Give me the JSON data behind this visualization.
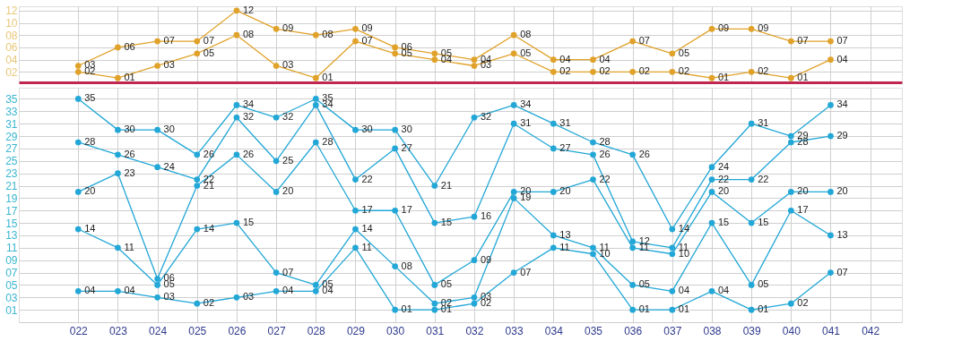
{
  "chart_data": [
    {
      "type": "line",
      "categories": [
        "022",
        "023",
        "024",
        "025",
        "026",
        "027",
        "028",
        "029",
        "030",
        "031",
        "032",
        "033",
        "034",
        "035",
        "036",
        "037",
        "038",
        "039",
        "040",
        "041",
        "042"
      ],
      "series": [
        {
          "color": "#e0a22a",
          "values": [
            3,
            6,
            7,
            7,
            12,
            9,
            8,
            9,
            6,
            5,
            4,
            8,
            4,
            4,
            7,
            5,
            9,
            9,
            7,
            7,
            null
          ],
          "value_labels": [
            "03",
            "06",
            "07",
            "07",
            "12",
            "09",
            "08",
            "09",
            "06",
            "05",
            "04",
            "08",
            "04",
            "04",
            "07",
            "05",
            "09",
            "09",
            "07",
            "07",
            null
          ]
        },
        {
          "color": "#e0a22a",
          "values": [
            2,
            1,
            3,
            5,
            8,
            3,
            1,
            7,
            5,
            4,
            3,
            5,
            2,
            2,
            2,
            2,
            1,
            2,
            1,
            4,
            null
          ],
          "value_labels": [
            "02",
            "01",
            "03",
            "05",
            "08",
            "03",
            "01",
            "07",
            "05",
            "04",
            "03",
            "05",
            "02",
            "02",
            "02",
            "02",
            "01",
            "02",
            "01",
            "04",
            null
          ]
        }
      ],
      "ylim": [
        0.3,
        12.7
      ],
      "yticks": [
        {
          "value": 2,
          "label": "02"
        },
        {
          "value": 4,
          "label": "04"
        },
        {
          "value": 6,
          "label": "06"
        },
        {
          "value": 8,
          "label": "08"
        },
        10,
        12
      ],
      "grid": true,
      "marker": "circle",
      "tick_labels": "y"
    },
    {
      "type": "line",
      "categories": [
        "022",
        "023",
        "024",
        "025",
        "026",
        "027",
        "028",
        "029",
        "030",
        "031",
        "032",
        "033",
        "034",
        "035",
        "036",
        "037",
        "038",
        "039",
        "040",
        "041",
        "042"
      ],
      "series": [
        {
          "color": "#22a7d6",
          "values": [
            35,
            30,
            30,
            26,
            34,
            32,
            35,
            30,
            30,
            21,
            32,
            34,
            31,
            28,
            26,
            14,
            24,
            31,
            29,
            34,
            null
          ],
          "value_labels": [
            "35",
            "30",
            "30",
            "26",
            "34",
            "32",
            "35",
            "30",
            "30",
            "21",
            "32",
            "34",
            "31",
            "28",
            "26",
            "14",
            "24",
            "31",
            "29",
            "34",
            null
          ]
        },
        {
          "color": "#22a7d6",
          "values": [
            28,
            26,
            24,
            22,
            32,
            25,
            34,
            22,
            27,
            15,
            16,
            31,
            27,
            26,
            12,
            11,
            22,
            22,
            28,
            29,
            null
          ],
          "value_labels": [
            "28",
            "26",
            "24",
            "22",
            "32",
            "25",
            "34",
            "22",
            "27",
            "15",
            "16",
            "31",
            "27",
            "26",
            "12",
            "11",
            "22",
            "22",
            "28",
            "29",
            null
          ]
        },
        {
          "color": "#22a7d6",
          "values": [
            20,
            23,
            6,
            21,
            26,
            20,
            28,
            17,
            17,
            5,
            9,
            20,
            20,
            22,
            11,
            10,
            20,
            15,
            20,
            20,
            null
          ],
          "value_labels": [
            "20",
            "23",
            "06",
            "21",
            "26",
            "20",
            "28",
            "17",
            "17",
            "05",
            "09",
            "20",
            "20",
            "22",
            "11",
            "10",
            "20",
            "15",
            "20",
            "20",
            null
          ]
        },
        {
          "color": "#22a7d6",
          "values": [
            14,
            11,
            5,
            14,
            15,
            7,
            5,
            14,
            8,
            2,
            3,
            19,
            13,
            11,
            5,
            4,
            15,
            5,
            17,
            13,
            null
          ],
          "value_labels": [
            "14",
            "11",
            "05",
            "14",
            "15",
            "07",
            "05",
            "14",
            "08",
            "02",
            "03",
            "19",
            "13",
            "11",
            "05",
            "04",
            "15",
            "05",
            "17",
            "13",
            null
          ]
        },
        {
          "color": "#22a7d6",
          "values": [
            4,
            4,
            3,
            2,
            3,
            4,
            4,
            11,
            1,
            1,
            2,
            7,
            11,
            10,
            1,
            1,
            4,
            1,
            2,
            7,
            null
          ],
          "value_labels": [
            "04",
            "04",
            "03",
            "02",
            "03",
            "04",
            "04",
            "11",
            "01",
            "01",
            "02",
            "07",
            "11",
            "10",
            "01",
            "01",
            "04",
            "01",
            "02",
            "07",
            null
          ]
        }
      ],
      "ylim": [
        -1,
        36.8
      ],
      "yticks": [
        {
          "value": 1,
          "label": "01"
        },
        {
          "value": 3,
          "label": "03"
        },
        {
          "value": 5,
          "label": "05"
        },
        {
          "value": 7,
          "label": "07"
        },
        {
          "value": 9,
          "label": "09"
        },
        11,
        13,
        15,
        17,
        19,
        21,
        23,
        25,
        27,
        29,
        31,
        33,
        35
      ],
      "grid": true,
      "marker": "circle"
    }
  ]
}
